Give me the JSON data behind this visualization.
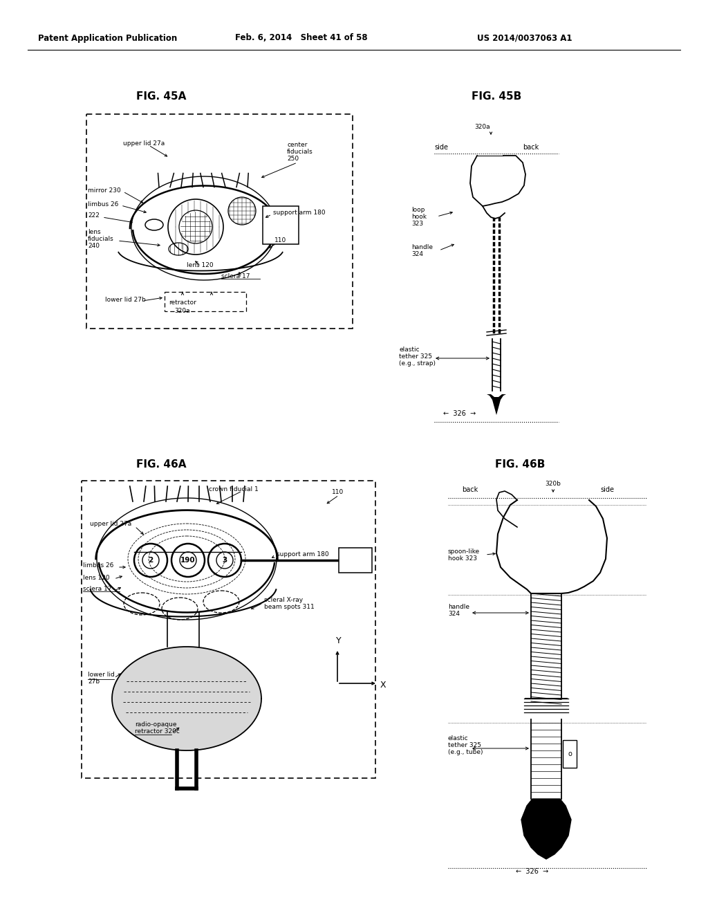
{
  "bg_color": "#ffffff",
  "header_left": "Patent Application Publication",
  "header_center": "Feb. 6, 2014   Sheet 41 of 58",
  "header_right": "US 2014/0037063 A1",
  "fig_45a_title": "FIG. 45A",
  "fig_45b_title": "FIG. 45B",
  "fig_46a_title": "FIG. 46A",
  "fig_46b_title": "FIG. 46B"
}
